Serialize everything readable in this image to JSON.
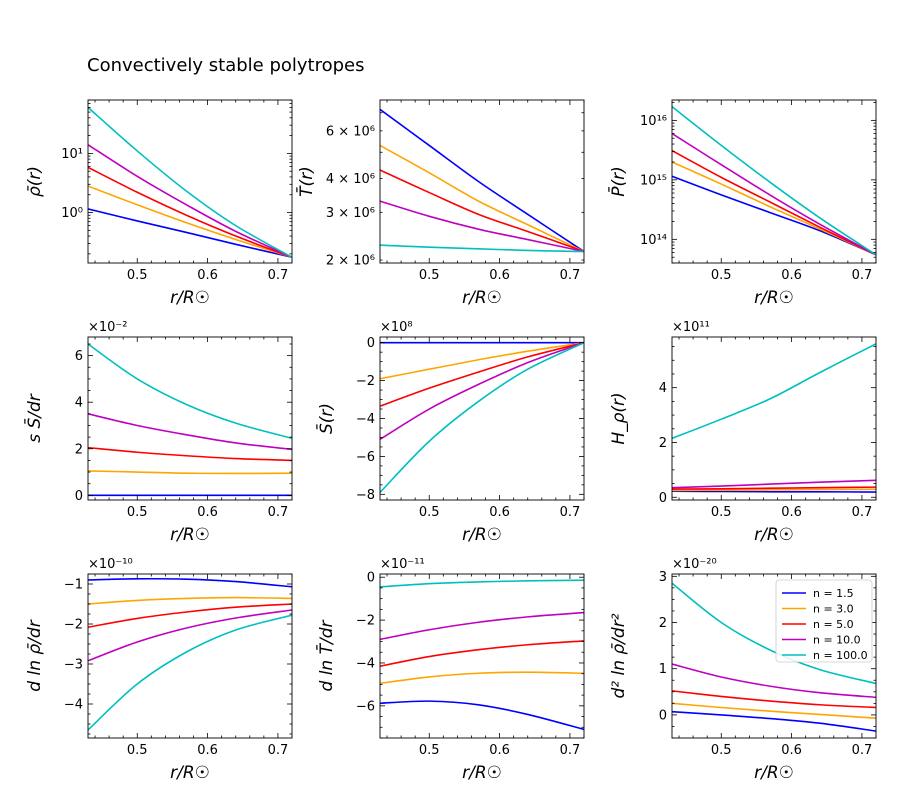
{
  "figure_title": "Convectively stable polytropes",
  "chart_data": [
    {
      "id": "rho",
      "type": "line",
      "yscale": "log",
      "xlabel": "r/R☉",
      "ylabel": "ρ̄(r)",
      "xlim": [
        0.43,
        0.72
      ],
      "ylim": [
        0.14,
        80
      ],
      "xticks": [
        0.5,
        0.6,
        0.7
      ],
      "xtick_labels": [
        "0.5",
        "0.6",
        "0.7"
      ],
      "yticks": [
        1,
        10
      ],
      "ytick_labels": [
        "10⁰",
        "10¹"
      ],
      "offset_text": "",
      "x": [
        0.43,
        0.5,
        0.57,
        0.64,
        0.72
      ],
      "series": [
        {
          "color": "#0000ff",
          "values": [
            1.15,
            0.72,
            0.46,
            0.29,
            0.175
          ]
        },
        {
          "color": "#ffa500",
          "values": [
            2.8,
            1.35,
            0.67,
            0.35,
            0.175
          ]
        },
        {
          "color": "#ff0000",
          "values": [
            5.8,
            2.2,
            0.9,
            0.4,
            0.175
          ]
        },
        {
          "color": "#bf00bf",
          "values": [
            14,
            4.1,
            1.35,
            0.48,
            0.175
          ]
        },
        {
          "color": "#00bfbf",
          "values": [
            60,
            11,
            2.3,
            0.6,
            0.175
          ]
        }
      ]
    },
    {
      "id": "T",
      "type": "line",
      "yscale": "log",
      "xlabel": "r/R☉",
      "ylabel": "T̄(r)",
      "xlim": [
        0.43,
        0.72
      ],
      "ylim": [
        1950000,
        7800000
      ],
      "xticks": [
        0.5,
        0.6,
        0.7
      ],
      "xtick_labels": [
        "0.5",
        "0.6",
        "0.7"
      ],
      "yticks": [
        2000000,
        3000000,
        4000000,
        6000000
      ],
      "ytick_labels": [
        "2 × 10⁶",
        "3 × 10⁶",
        "4 × 10⁶",
        "6 × 10⁶"
      ],
      "offset_text": "",
      "x": [
        0.43,
        0.5,
        0.57,
        0.64,
        0.72
      ],
      "series": [
        {
          "color": "#0000ff",
          "values": [
            7200000,
            5300000,
            3900000,
            2950000,
            2150000
          ]
        },
        {
          "color": "#ffa500",
          "values": [
            5300000,
            4200000,
            3300000,
            2700000,
            2150000
          ]
        },
        {
          "color": "#ff0000",
          "values": [
            4300000,
            3550000,
            2950000,
            2550000,
            2150000
          ]
        },
        {
          "color": "#bf00bf",
          "values": [
            3300000,
            2900000,
            2600000,
            2380000,
            2150000
          ]
        },
        {
          "color": "#00bfbf",
          "values": [
            2270000,
            2230000,
            2200000,
            2170000,
            2150000
          ]
        }
      ]
    },
    {
      "id": "P",
      "type": "line",
      "yscale": "log",
      "xlabel": "r/R☉",
      "ylabel": "P̄(r)",
      "xlim": [
        0.43,
        0.72
      ],
      "ylim": [
        40000000000000,
        22000000000000000
      ],
      "xticks": [
        0.5,
        0.6,
        0.7
      ],
      "xtick_labels": [
        "0.5",
        "0.6",
        "0.7"
      ],
      "yticks": [
        100000000000000,
        1000000000000000,
        10000000000000000
      ],
      "ytick_labels": [
        "10¹⁴",
        "10¹⁵",
        "10¹⁶"
      ],
      "offset_text": "",
      "x": [
        0.43,
        0.5,
        0.57,
        0.64,
        0.72
      ],
      "series": [
        {
          "color": "#0000ff",
          "values": [
            1150000000000000,
            560000000000000,
            280000000000000,
            140000000000000,
            55000000000000
          ]
        },
        {
          "color": "#ffa500",
          "values": [
            2000000000000000,
            850000000000000,
            350000000000000,
            150000000000000,
            55000000000000
          ]
        },
        {
          "color": "#ff0000",
          "values": [
            3100000000000000,
            1100000000000000,
            420000000000000,
            160000000000000,
            55000000000000
          ]
        },
        {
          "color": "#bf00bf",
          "values": [
            6000000000000000,
            1800000000000000,
            550000000000000,
            180000000000000,
            55000000000000
          ]
        },
        {
          "color": "#00bfbf",
          "values": [
            17000000000000000,
            3800000000000000,
            900000000000000,
            230000000000000,
            55000000000000
          ]
        }
      ]
    },
    {
      "id": "dSdr",
      "type": "line",
      "yscale": "linear",
      "xlabel": "r/R☉",
      "ylabel": "s S̄/dr",
      "xlim": [
        0.43,
        0.72
      ],
      "ylim": [
        -0.2,
        6.8
      ],
      "xticks": [
        0.5,
        0.6,
        0.7
      ],
      "xtick_labels": [
        "0.5",
        "0.6",
        "0.7"
      ],
      "yticks": [
        0,
        2,
        4,
        6
      ],
      "ytick_labels": [
        "0",
        "2",
        "4",
        "6"
      ],
      "offset_text": "×10⁻²",
      "x": [
        0.43,
        0.5,
        0.57,
        0.64,
        0.72
      ],
      "series": [
        {
          "color": "#0000ff",
          "values": [
            0,
            0,
            0,
            0,
            0
          ]
        },
        {
          "color": "#ffa500",
          "values": [
            1.05,
            1.0,
            0.95,
            0.94,
            0.95
          ]
        },
        {
          "color": "#ff0000",
          "values": [
            2.05,
            1.85,
            1.7,
            1.58,
            1.5
          ]
        },
        {
          "color": "#bf00bf",
          "values": [
            3.5,
            3.0,
            2.6,
            2.25,
            1.97
          ]
        },
        {
          "color": "#00bfbf",
          "values": [
            6.5,
            5.0,
            3.9,
            3.1,
            2.45
          ]
        }
      ]
    },
    {
      "id": "S",
      "type": "line",
      "yscale": "linear",
      "xlabel": "r/R☉",
      "ylabel": "S̄(r)",
      "xlim": [
        0.43,
        0.72
      ],
      "ylim": [
        -8.3,
        0.3
      ],
      "xticks": [
        0.5,
        0.6,
        0.7
      ],
      "xtick_labels": [
        "0.5",
        "0.6",
        "0.7"
      ],
      "yticks": [
        -8,
        -6,
        -4,
        -2,
        0
      ],
      "ytick_labels": [
        "−8",
        "−6",
        "−4",
        "−2",
        "0"
      ],
      "offset_text": "×10⁸",
      "x": [
        0.43,
        0.5,
        0.57,
        0.64,
        0.72
      ],
      "series": [
        {
          "color": "#0000ff",
          "values": [
            0,
            0,
            0,
            0,
            0
          ]
        },
        {
          "color": "#ffa500",
          "values": [
            -1.9,
            -1.4,
            -0.9,
            -0.45,
            0
          ]
        },
        {
          "color": "#ff0000",
          "values": [
            -3.35,
            -2.4,
            -1.55,
            -0.75,
            0
          ]
        },
        {
          "color": "#bf00bf",
          "values": [
            -5.1,
            -3.5,
            -2.2,
            -1.05,
            0
          ]
        },
        {
          "color": "#00bfbf",
          "values": [
            -7.9,
            -5.2,
            -3.1,
            -1.4,
            0
          ]
        }
      ]
    },
    {
      "id": "Hrho",
      "type": "line",
      "yscale": "linear",
      "xlabel": "r/R☉",
      "ylabel": "H_ρ(r)",
      "xlim": [
        0.43,
        0.72
      ],
      "ylim": [
        -0.1,
        5.85
      ],
      "xticks": [
        0.5,
        0.6,
        0.7
      ],
      "xtick_labels": [
        "0.5",
        "0.6",
        "0.7"
      ],
      "yticks": [
        0,
        2,
        4
      ],
      "ytick_labels": [
        "0",
        "2",
        "4"
      ],
      "offset_text": "×10¹¹",
      "x": [
        0.43,
        0.5,
        0.57,
        0.64,
        0.72
      ],
      "series": [
        {
          "color": "#0000ff",
          "values": [
            0.22,
            0.21,
            0.2,
            0.2,
            0.19
          ]
        },
        {
          "color": "#ffa500",
          "values": [
            0.25,
            0.26,
            0.27,
            0.28,
            0.29
          ]
        },
        {
          "color": "#ff0000",
          "values": [
            0.3,
            0.31,
            0.33,
            0.35,
            0.37
          ]
        },
        {
          "color": "#bf00bf",
          "values": [
            0.35,
            0.41,
            0.48,
            0.55,
            0.62
          ]
        },
        {
          "color": "#00bfbf",
          "values": [
            2.15,
            2.85,
            3.6,
            4.55,
            5.6
          ]
        }
      ]
    },
    {
      "id": "dlnrho",
      "type": "line",
      "yscale": "linear",
      "xlabel": "r/R☉",
      "ylabel": "d ln ρ̄/dr",
      "xlim": [
        0.43,
        0.72
      ],
      "ylim": [
        -4.85,
        -0.75
      ],
      "xticks": [
        0.5,
        0.6,
        0.7
      ],
      "xtick_labels": [
        "0.5",
        "0.6",
        "0.7"
      ],
      "yticks": [
        -4,
        -3,
        -2,
        -1
      ],
      "ytick_labels": [
        "−4",
        "−3",
        "−2",
        "−1"
      ],
      "offset_text": "×10⁻¹⁰",
      "x": [
        0.43,
        0.5,
        0.57,
        0.64,
        0.72
      ],
      "series": [
        {
          "color": "#0000ff",
          "values": [
            -0.9,
            -0.87,
            -0.88,
            -0.94,
            -1.07
          ]
        },
        {
          "color": "#ffa500",
          "values": [
            -1.5,
            -1.41,
            -1.36,
            -1.34,
            -1.36
          ]
        },
        {
          "color": "#ff0000",
          "values": [
            -2.08,
            -1.86,
            -1.7,
            -1.58,
            -1.5
          ]
        },
        {
          "color": "#bf00bf",
          "values": [
            -2.92,
            -2.45,
            -2.1,
            -1.85,
            -1.65
          ]
        },
        {
          "color": "#00bfbf",
          "values": [
            -4.65,
            -3.5,
            -2.7,
            -2.15,
            -1.78
          ]
        }
      ]
    },
    {
      "id": "dlnT",
      "type": "line",
      "yscale": "linear",
      "xlabel": "r/R☉",
      "ylabel": "d ln T̄/dr",
      "xlim": [
        0.43,
        0.72
      ],
      "ylim": [
        -7.5,
        0.15
      ],
      "xticks": [
        0.5,
        0.6,
        0.7
      ],
      "xtick_labels": [
        "0.5",
        "0.6",
        "0.7"
      ],
      "yticks": [
        -6,
        -4,
        -2,
        0
      ],
      "ytick_labels": [
        "−6",
        "−4",
        "−2",
        "0"
      ],
      "offset_text": "×10⁻¹¹",
      "x": [
        0.43,
        0.5,
        0.57,
        0.64,
        0.72
      ],
      "series": [
        {
          "color": "#0000ff",
          "values": [
            -5.88,
            -5.78,
            -5.95,
            -6.4,
            -7.1
          ]
        },
        {
          "color": "#ffa500",
          "values": [
            -4.95,
            -4.65,
            -4.48,
            -4.43,
            -4.48
          ]
        },
        {
          "color": "#ff0000",
          "values": [
            -4.15,
            -3.7,
            -3.38,
            -3.15,
            -2.97
          ]
        },
        {
          "color": "#bf00bf",
          "values": [
            -2.9,
            -2.45,
            -2.1,
            -1.85,
            -1.65
          ]
        },
        {
          "color": "#00bfbf",
          "values": [
            -0.45,
            -0.3,
            -0.22,
            -0.17,
            -0.14
          ]
        }
      ]
    },
    {
      "id": "d2lnrho",
      "type": "line",
      "yscale": "linear",
      "xlabel": "r/R☉",
      "ylabel": "d² ln ρ̄/dr²",
      "xlim": [
        0.43,
        0.72
      ],
      "ylim": [
        -0.5,
        3.05
      ],
      "xticks": [
        0.5,
        0.6,
        0.7
      ],
      "xtick_labels": [
        "0.5",
        "0.6",
        "0.7"
      ],
      "yticks": [
        0,
        1,
        2,
        3
      ],
      "ytick_labels": [
        "0",
        "1",
        "2",
        "3"
      ],
      "offset_text": "×10⁻²⁰",
      "x": [
        0.43,
        0.5,
        0.57,
        0.64,
        0.72
      ],
      "series": [
        {
          "color": "#0000ff",
          "values": [
            0.07,
            0.0,
            -0.08,
            -0.18,
            -0.35
          ]
        },
        {
          "color": "#ffa500",
          "values": [
            0.25,
            0.16,
            0.08,
            0.01,
            -0.07
          ]
        },
        {
          "color": "#ff0000",
          "values": [
            0.52,
            0.4,
            0.3,
            0.22,
            0.16
          ]
        },
        {
          "color": "#bf00bf",
          "values": [
            1.1,
            0.82,
            0.62,
            0.48,
            0.38
          ]
        },
        {
          "color": "#00bfbf",
          "values": [
            2.85,
            2.0,
            1.4,
            0.98,
            0.68
          ]
        }
      ],
      "legend": {
        "location": "upper right",
        "entries": [
          {
            "label": "n = 1.5",
            "color": "#0000ff"
          },
          {
            "label": "n = 3.0",
            "color": "#ffa500"
          },
          {
            "label": "n = 5.0",
            "color": "#ff0000"
          },
          {
            "label": "n = 10.0",
            "color": "#bf00bf"
          },
          {
            "label": "n = 100.0",
            "color": "#00bfbf"
          }
        ]
      }
    }
  ]
}
